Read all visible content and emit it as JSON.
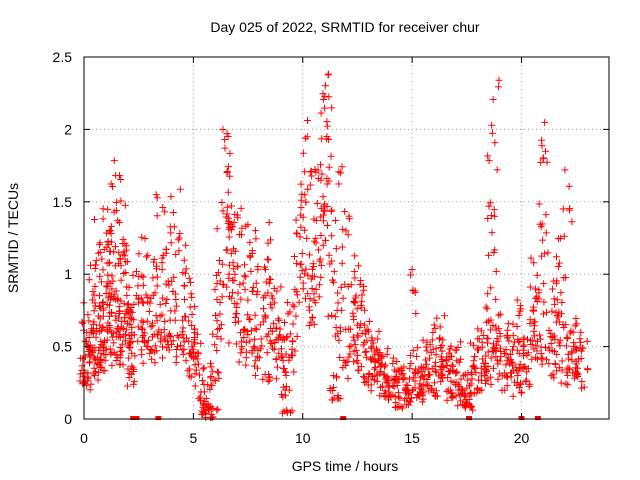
{
  "chart_data": {
    "type": "scatter",
    "title": "Day 025 of 2022, SRMTID for receiver chur",
    "xlabel": "GPS time / hours",
    "ylabel": "SRMTID / TECUs",
    "xlim": [
      0,
      24
    ],
    "ylim": [
      0,
      2.5
    ],
    "xticks": [
      0,
      5,
      10,
      15,
      20
    ],
    "yticks": [
      0,
      0.5,
      1,
      1.5,
      2,
      2.5
    ],
    "xtick_labels": [
      "0",
      "5",
      "10",
      "15",
      "20"
    ],
    "ytick_labels": [
      "0",
      "0.5",
      "1",
      "1.5",
      "2",
      "2.5"
    ],
    "grid": true,
    "marker": "+",
    "color": "#ff0000",
    "series": [
      {
        "name": "SRMTID",
        "x": [
          0.05,
          0.1,
          0.15,
          0.2,
          0.25,
          0.3,
          0.35,
          0.4,
          0.45,
          0.5,
          0.55,
          0.6,
          0.65,
          0.7,
          0.75,
          0.8,
          0.85,
          0.9,
          0.95,
          1.0,
          1.05,
          1.1,
          1.15,
          1.2,
          1.25,
          1.3,
          1.35,
          1.4,
          1.45,
          1.5,
          1.55,
          1.6,
          1.65,
          1.7,
          1.75,
          1.8,
          1.85,
          1.9,
          1.95,
          2.0,
          2.05,
          2.1,
          2.2,
          2.3,
          2.4,
          2.5,
          2.6,
          2.7,
          2.8,
          2.9,
          3.0,
          3.1,
          3.2,
          3.3,
          3.4,
          3.5,
          3.6,
          3.7,
          3.8,
          3.9,
          4.0,
          4.1,
          4.2,
          4.3,
          4.4,
          4.5,
          4.6,
          4.7,
          4.8,
          4.9,
          5.0,
          5.1,
          5.2,
          5.3,
          5.4,
          5.5,
          5.6,
          5.7,
          5.8,
          5.9,
          6.0,
          6.1,
          6.2,
          6.3,
          6.4,
          6.5,
          6.55,
          6.6,
          6.65,
          6.7,
          6.8,
          6.9,
          7.0,
          7.1,
          7.2,
          7.3,
          7.4,
          7.5,
          7.6,
          7.7,
          7.8,
          7.9,
          8.0,
          8.1,
          8.2,
          8.3,
          8.4,
          8.5,
          8.6,
          8.7,
          8.8,
          8.9,
          9.0,
          9.1,
          9.2,
          9.3,
          9.4,
          9.5,
          9.6,
          9.7,
          9.8,
          9.9,
          10.0,
          10.1,
          10.2,
          10.3,
          10.4,
          10.5,
          10.6,
          10.7,
          10.8,
          10.9,
          11.0,
          11.05,
          11.1,
          11.15,
          11.2,
          11.3,
          11.4,
          11.5,
          11.6,
          11.7,
          11.8,
          11.9,
          12.0,
          12.1,
          12.2,
          12.3,
          12.4,
          12.5,
          12.6,
          12.7,
          12.8,
          12.9,
          13.0,
          13.1,
          13.2,
          13.3,
          13.4,
          13.5,
          13.6,
          13.7,
          13.8,
          13.9,
          14.0,
          14.1,
          14.2,
          14.3,
          14.4,
          14.5,
          14.6,
          14.7,
          14.8,
          14.9,
          15.0,
          15.1,
          15.2,
          15.3,
          15.4,
          15.5,
          15.6,
          15.7,
          15.8,
          15.9,
          16.0,
          16.1,
          16.2,
          16.3,
          16.4,
          16.5,
          16.6,
          16.7,
          16.8,
          16.9,
          17.0,
          17.1,
          17.2,
          17.3,
          17.4,
          17.5,
          17.6,
          17.7,
          17.8,
          17.9,
          18.0,
          18.1,
          18.2,
          18.3,
          18.4,
          18.5,
          18.6,
          18.65,
          18.7,
          18.75,
          18.8,
          18.9,
          19.0,
          19.1,
          19.2,
          19.3,
          19.4,
          19.5,
          19.6,
          19.7,
          19.8,
          19.9,
          20.0,
          20.1,
          20.2,
          20.3,
          20.4,
          20.5,
          20.6,
          20.7,
          20.8,
          20.9,
          21.0,
          21.1,
          21.2,
          21.3,
          21.4,
          21.5,
          21.6,
          21.7,
          21.8,
          21.9,
          22.0,
          22.1,
          22.2,
          22.3,
          22.4,
          22.5,
          22.6,
          22.7,
          22.8
        ],
        "y": [
          0.35,
          0.55,
          0.3,
          0.7,
          0.45,
          0.25,
          0.8,
          0.5,
          0.4,
          0.9,
          0.6,
          0.35,
          0.75,
          1.25,
          0.5,
          0.4,
          1.0,
          0.65,
          1.2,
          0.55,
          0.8,
          1.1,
          0.45,
          0.7,
          1.45,
          0.9,
          0.6,
          1.3,
          0.5,
          0.85,
          1.2,
          0.65,
          1.05,
          0.4,
          0.95,
          1.35,
          0.75,
          0.55,
          1.0,
          0.7,
          0.6,
          0.3,
          0.45,
          0.65,
          0.9,
          0.55,
          0.8,
          1.1,
          0.5,
          0.7,
          0.95,
          0.4,
          0.85,
          0.6,
          1.3,
          0.75,
          0.5,
          1.05,
          0.65,
          1.2,
          0.9,
          0.55,
          1.3,
          0.7,
          0.45,
          1.0,
          0.6,
          0.8,
          0.35,
          0.55,
          0.7,
          0.4,
          0.5,
          0.3,
          0.15,
          0.05,
          0.1,
          0.02,
          0.25,
          0.08,
          0.35,
          0.55,
          0.9,
          1.2,
          0.8,
          1.5,
          1.6,
          1.75,
          1.1,
          1.3,
          0.7,
          0.95,
          1.15,
          0.6,
          0.85,
          0.5,
          1.2,
          0.75,
          0.45,
          0.95,
          1.05,
          0.6,
          0.4,
          0.85,
          0.55,
          0.3,
          0.9,
          0.65,
          1.1,
          0.45,
          0.75,
          0.5,
          0.35,
          0.6,
          0.2,
          0.05,
          0.4,
          0.7,
          0.55,
          0.9,
          1.1,
          1.3,
          1.65,
          1.25,
          0.95,
          1.4,
          0.7,
          0.85,
          1.2,
          1.45,
          1.05,
          1.6,
          1.95,
          2.0,
          1.75,
          1.85,
          1.3,
          0.9,
          0.25,
          0.15,
          0.6,
          1.45,
          0.8,
          0.35,
          1.2,
          0.5,
          0.95,
          0.7,
          0.4,
          0.65,
          0.85,
          0.5,
          0.75,
          0.3,
          0.55,
          0.4,
          0.25,
          0.45,
          0.35,
          0.5,
          0.3,
          0.2,
          0.4,
          0.15,
          0.25,
          0.35,
          0.2,
          0.3,
          0.1,
          0.25,
          0.18,
          0.3,
          0.12,
          0.22,
          0.95,
          0.4,
          0.28,
          0.15,
          0.35,
          0.2,
          0.3,
          0.45,
          0.25,
          0.55,
          0.35,
          0.2,
          0.4,
          0.6,
          0.3,
          0.45,
          0.25,
          0.35,
          0.15,
          0.4,
          0.5,
          0.3,
          0.2,
          0.1,
          0.25,
          0.15,
          0.08,
          0.3,
          0.45,
          0.2,
          0.35,
          0.5,
          0.25,
          0.4,
          0.55,
          0.3,
          0.8,
          1.5,
          1.2,
          1.9,
          0.5,
          0.45,
          0.6,
          0.35,
          0.5,
          0.25,
          0.4,
          0.55,
          0.3,
          0.45,
          0.2,
          0.35,
          0.7,
          0.5,
          0.3,
          0.45,
          0.6,
          0.8,
          1.0,
          0.55,
          0.4,
          1.1,
          1.45,
          1.7,
          0.65,
          0.5,
          0.35,
          0.9,
          0.6,
          0.45,
          1.05,
          0.75,
          0.3,
          1.4,
          0.55,
          0.4,
          0.6,
          0.35,
          0.5,
          0.25,
          0.45
        ]
      }
    ],
    "zero_markers_x": [
      2.25,
      2.4,
      3.4,
      11.85,
      17.6,
      20.0,
      20.75
    ]
  }
}
